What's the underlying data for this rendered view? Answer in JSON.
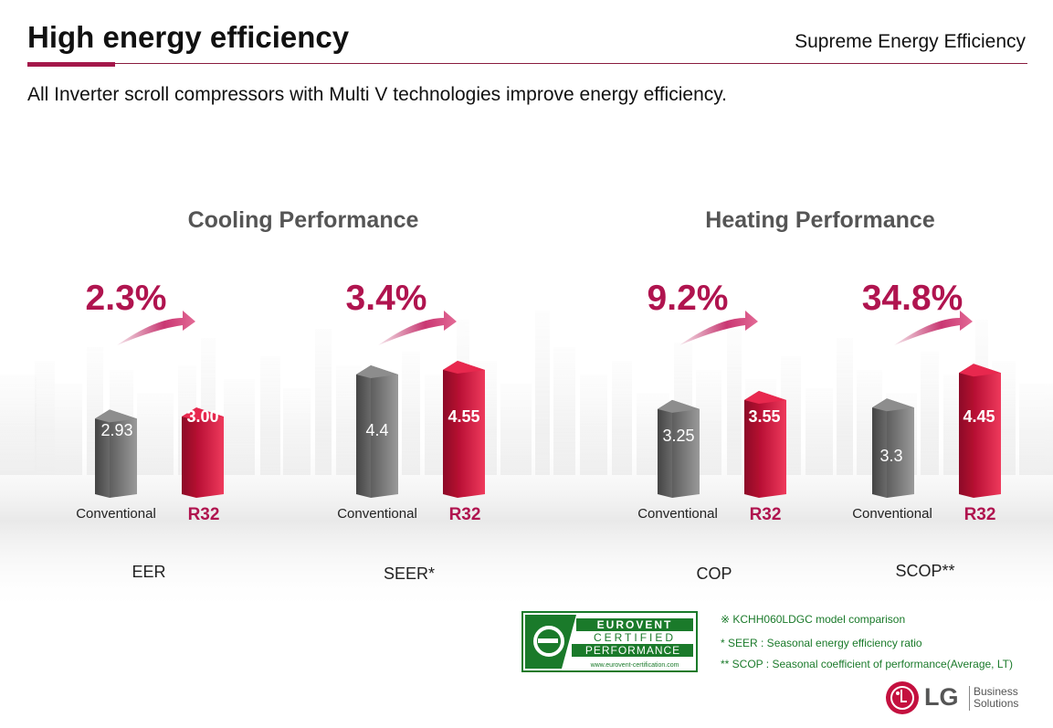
{
  "header": {
    "title": "High energy efficiency",
    "section": "Supreme Energy Efficiency",
    "subtitle": "All Inverter scroll compressors with Multi V technologies improve energy efficiency."
  },
  "groups": [
    {
      "title": "Cooling Performance"
    },
    {
      "title": "Heating Performance"
    }
  ],
  "comparisons": [
    {
      "metric": "EER",
      "improvement": "2.3%",
      "conventional_label": "Conventional",
      "r32_label": "R32",
      "conventional_value": "2.93",
      "r32_value": "3.00",
      "conventional": 2.93,
      "r32": 3.0
    },
    {
      "metric": "SEER*",
      "improvement": "3.4%",
      "conventional_label": "Conventional",
      "r32_label": "R32",
      "conventional_value": "4.4",
      "r32_value": "4.55",
      "conventional": 4.4,
      "r32": 4.55
    },
    {
      "metric": "COP",
      "improvement": "9.2%",
      "conventional_label": "Conventional",
      "r32_label": "R32",
      "conventional_value": "3.25",
      "r32_value": "3.55",
      "conventional": 3.25,
      "r32": 3.55
    },
    {
      "metric": "SCOP**",
      "improvement": "34.8%",
      "conventional_label": "Conventional",
      "r32_label": "R32",
      "conventional_value": "3.3",
      "r32_value": "4.45",
      "conventional": 3.3,
      "r32": 4.45
    }
  ],
  "notes": [
    "※ KCHH060LDGC model comparison",
    "* SEER : Seasonal energy efficiency ratio",
    "** SCOP : Seasonal coefficient of performance(Average, LT)"
  ],
  "eurovent": {
    "line1": "EUROVENT",
    "line2": "CERTIFIED",
    "line3": "PERFORMANCE",
    "url": "www.eurovent-certification.com"
  },
  "brand": {
    "logo": "LG",
    "line1": "Business",
    "line2": "Solutions"
  },
  "colors": {
    "accent": "#b0144f",
    "bar_red": "#d3173f",
    "bar_gray": "#7a7a7a",
    "cert_green": "#1a7a2a"
  }
}
